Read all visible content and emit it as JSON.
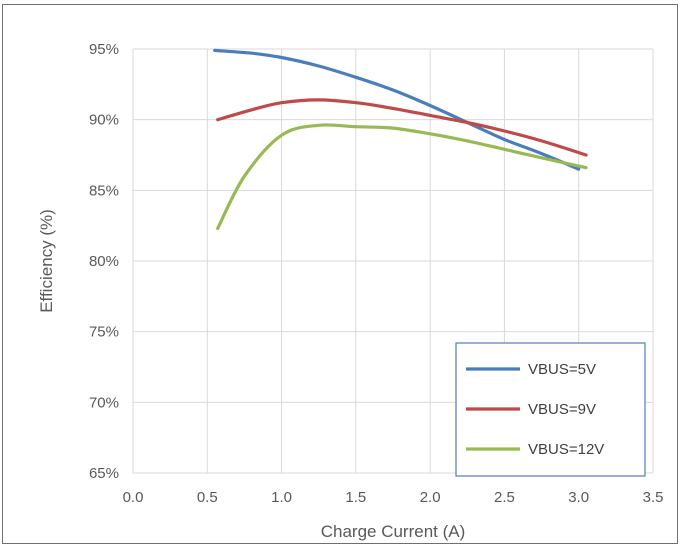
{
  "chart_data": {
    "type": "line",
    "xlabel": "Charge Current (A)",
    "ylabel": "Efficiency (%)",
    "xlim": [
      0,
      3.5
    ],
    "ylim": [
      65,
      95
    ],
    "xticks": [
      "0.0",
      "0.5",
      "1.0",
      "1.5",
      "2.0",
      "2.5",
      "3.0",
      "3.5"
    ],
    "yticks": [
      "65%",
      "70%",
      "75%",
      "80%",
      "85%",
      "90%",
      "95%"
    ],
    "grid": true,
    "legend_position": "bottom-right",
    "series": [
      {
        "name": "VBUS=5V",
        "color": "#4a7ebb",
        "x": [
          0.55,
          0.8,
          1.0,
          1.25,
          1.5,
          1.75,
          2.0,
          2.25,
          2.5,
          2.75,
          3.0
        ],
        "y": [
          94.9,
          94.7,
          94.4,
          93.8,
          93.0,
          92.1,
          91.0,
          89.8,
          88.6,
          87.6,
          86.5
        ]
      },
      {
        "name": "VBUS=9V",
        "color": "#be4b48",
        "x": [
          0.57,
          0.8,
          1.0,
          1.25,
          1.5,
          1.75,
          2.0,
          2.25,
          2.5,
          2.75,
          3.05
        ],
        "y": [
          90.0,
          90.7,
          91.2,
          91.4,
          91.2,
          90.8,
          90.3,
          89.8,
          89.2,
          88.5,
          87.5
        ]
      },
      {
        "name": "VBUS=12V",
        "color": "#98b954",
        "x": [
          0.57,
          0.75,
          1.0,
          1.25,
          1.5,
          1.75,
          2.0,
          2.25,
          2.5,
          2.75,
          3.05
        ],
        "y": [
          82.3,
          86.0,
          88.9,
          89.6,
          89.5,
          89.4,
          89.0,
          88.5,
          87.9,
          87.3,
          86.6
        ]
      }
    ]
  }
}
